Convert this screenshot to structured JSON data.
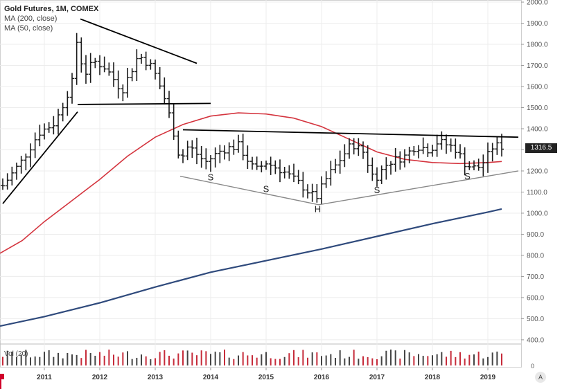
{
  "legend": {
    "title": "Gold Futures, 1M, COMEX",
    "ma200": "MA (200, close)",
    "ma50": "MA (50, close)"
  },
  "volume_label": "Vol (20)",
  "last_price": "1316.5",
  "auto_button": "A",
  "colors": {
    "bars": "#1a1a1a",
    "ma50": "#d4343e",
    "ma200": "#2f4a7c",
    "trendline": "#000000",
    "neckline_gray": "#888888",
    "vol_up": "#444444",
    "vol_down": "#c62b3a"
  },
  "chart_data": {
    "type": "line",
    "title": "Gold Futures, 1M, COMEX",
    "timeframe": "monthly",
    "x_ticks": [
      "2011",
      "2012",
      "2013",
      "2014",
      "2015",
      "2016",
      "2017",
      "2018",
      "2019"
    ],
    "y_ticks": [
      400,
      500,
      600,
      700,
      800,
      900,
      1000,
      1100,
      1200,
      1300,
      1400,
      1500,
      1600,
      1700,
      1800,
      1900,
      2000
    ],
    "y_tick_labels": [
      "400.0",
      "500.0",
      "600.0",
      "700.0",
      "800.0",
      "900.0",
      "1000.0",
      "1100.0",
      "1200.0",
      "1300.0",
      "1400.0",
      "1500.0",
      "1600.0",
      "1700.0",
      "1800.0",
      "1900.0",
      "2000.0"
    ],
    "ylim": [
      380,
      2010
    ],
    "xlim": [
      2010.2,
      2019.6
    ],
    "grid": true,
    "price_key_points": [
      [
        2010.25,
        1130
      ],
      [
        2010.6,
        1250
      ],
      [
        2010.9,
        1380
      ],
      [
        2011.2,
        1430
      ],
      [
        2011.5,
        1620
      ],
      [
        2011.6,
        1850
      ],
      [
        2011.7,
        1650
      ],
      [
        2011.9,
        1720
      ],
      [
        2012.1,
        1690
      ],
      [
        2012.4,
        1580
      ],
      [
        2012.7,
        1750
      ],
      [
        2012.95,
        1690
      ],
      [
        2013.15,
        1560
      ],
      [
        2013.3,
        1420
      ],
      [
        2013.45,
        1250
      ],
      [
        2013.6,
        1320
      ],
      [
        2013.9,
        1240
      ],
      [
        2014.2,
        1300
      ],
      [
        2014.5,
        1320
      ],
      [
        2014.8,
        1200
      ],
      [
        2015.0,
        1240
      ],
      [
        2015.3,
        1200
      ],
      [
        2015.6,
        1140
      ],
      [
        2015.9,
        1070
      ],
      [
        2016.1,
        1170
      ],
      [
        2016.35,
        1260
      ],
      [
        2016.55,
        1330
      ],
      [
        2016.75,
        1290
      ],
      [
        2016.95,
        1160
      ],
      [
        2017.2,
        1240
      ],
      [
        2017.5,
        1270
      ],
      [
        2017.7,
        1320
      ],
      [
        2017.95,
        1300
      ],
      [
        2018.1,
        1340
      ],
      [
        2018.4,
        1310
      ],
      [
        2018.6,
        1230
      ],
      [
        2018.8,
        1210
      ],
      [
        2018.95,
        1250
      ],
      [
        2019.1,
        1320
      ],
      [
        2019.25,
        1316.5
      ]
    ],
    "series": [
      {
        "name": "MA (50, close)",
        "points": [
          [
            2010.2,
            810
          ],
          [
            2010.6,
            870
          ],
          [
            2011.0,
            960
          ],
          [
            2011.5,
            1060
          ],
          [
            2012.0,
            1160
          ],
          [
            2012.5,
            1270
          ],
          [
            2013.0,
            1360
          ],
          [
            2013.5,
            1420
          ],
          [
            2014.0,
            1460
          ],
          [
            2014.5,
            1475
          ],
          [
            2015.0,
            1470
          ],
          [
            2015.5,
            1450
          ],
          [
            2016.0,
            1410
          ],
          [
            2016.5,
            1350
          ],
          [
            2017.0,
            1290
          ],
          [
            2017.5,
            1255
          ],
          [
            2018.0,
            1240
          ],
          [
            2018.5,
            1235
          ],
          [
            2019.0,
            1240
          ],
          [
            2019.25,
            1245
          ]
        ]
      },
      {
        "name": "MA (200, close)",
        "points": [
          [
            2010.2,
            465
          ],
          [
            2011.0,
            510
          ],
          [
            2012.0,
            575
          ],
          [
            2013.0,
            650
          ],
          [
            2014.0,
            720
          ],
          [
            2015.0,
            775
          ],
          [
            2016.0,
            830
          ],
          [
            2017.0,
            890
          ],
          [
            2018.0,
            950
          ],
          [
            2019.0,
            1005
          ],
          [
            2019.25,
            1020
          ]
        ]
      }
    ],
    "trendlines": [
      {
        "from": [
          2010.25,
          1045
        ],
        "to": [
          2011.6,
          1480
        ]
      },
      {
        "from": [
          2011.65,
          1920
        ],
        "to": [
          2013.75,
          1710
        ]
      },
      {
        "from": [
          2011.6,
          1515
        ],
        "to": [
          2014.0,
          1520
        ]
      },
      {
        "from": [
          2013.5,
          1395
        ],
        "to": [
          2019.55,
          1360
        ]
      }
    ],
    "gray_lines": [
      {
        "from": [
          2013.45,
          1175
        ],
        "to": [
          2015.95,
          1040
        ]
      },
      {
        "from": [
          2015.95,
          1040
        ],
        "to": [
          2019.55,
          1200
        ]
      }
    ],
    "annotations": [
      {
        "text": "S",
        "x": 2014.0,
        "y": 1155
      },
      {
        "text": "S",
        "x": 2015.0,
        "y": 1100
      },
      {
        "text": "H",
        "x": 2015.93,
        "y": 1005
      },
      {
        "text": "S",
        "x": 2017.0,
        "y": 1095
      },
      {
        "text": "S",
        "x": 2018.63,
        "y": 1160
      }
    ],
    "volume": {
      "label": "Vol (20)",
      "y_tick_label": "0"
    }
  }
}
